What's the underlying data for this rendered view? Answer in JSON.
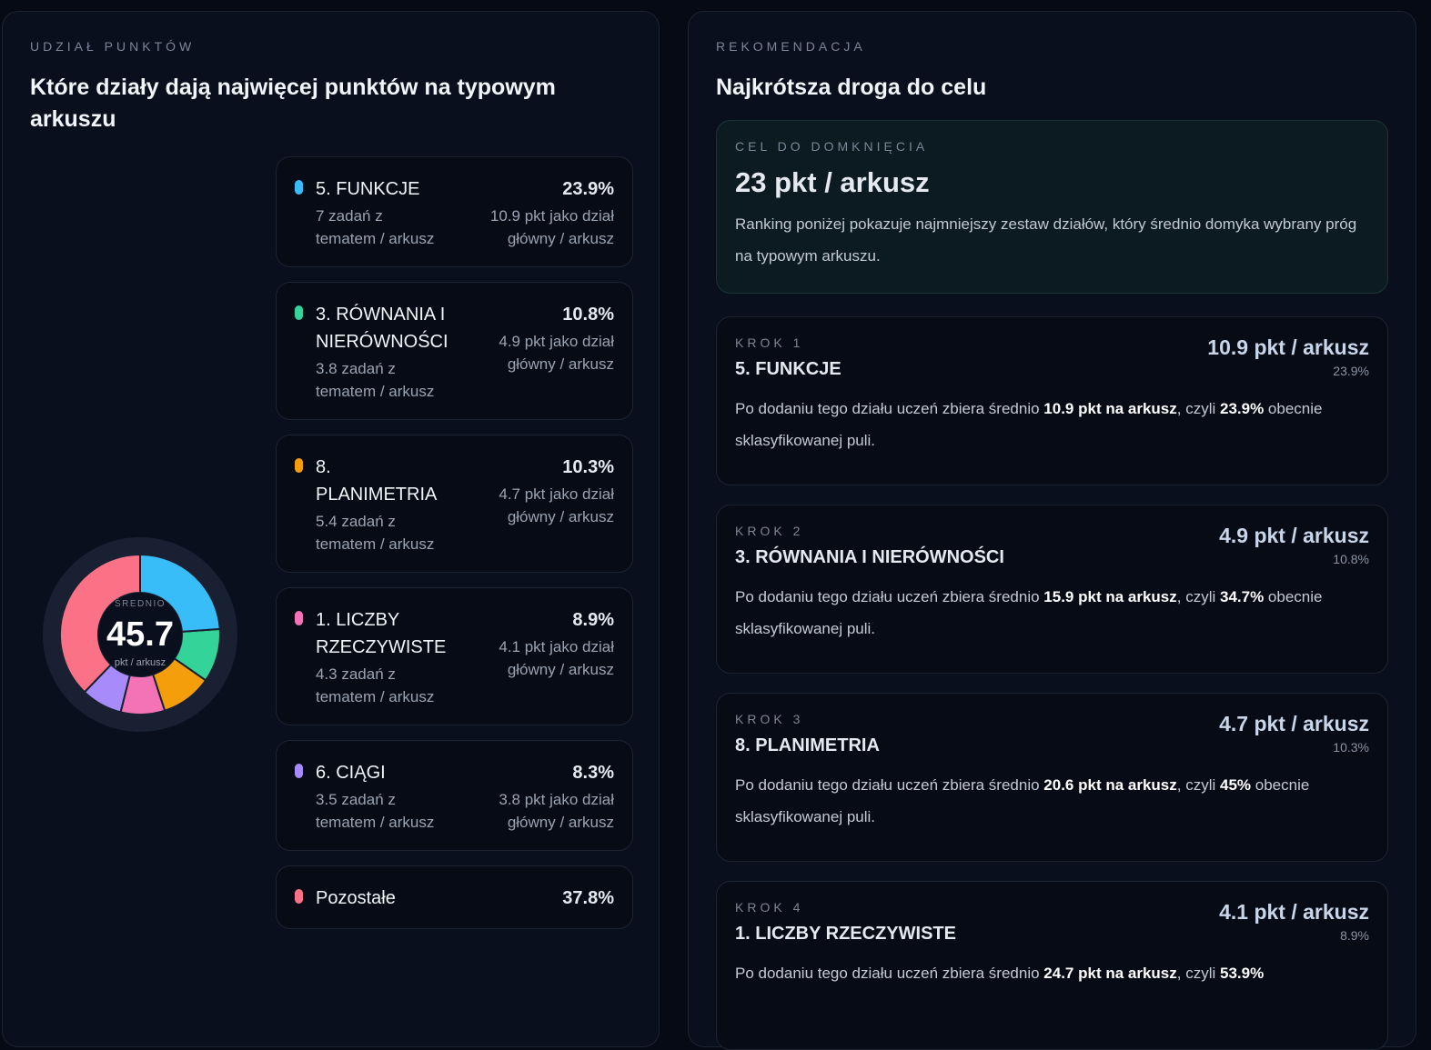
{
  "left": {
    "eyebrow": "UDZIAŁ PUNKTÓW",
    "title": "Które działy dają najwięcej punktów na typowym arkuszu",
    "center": {
      "label": "ŚREDNIO",
      "value": "45.7",
      "unit": "pkt / arkusz"
    },
    "items": [
      {
        "name": "5. FUNKCJE",
        "value": 23.9,
        "value_label": "23.9%",
        "tasks": "7 zadań z tematem / arkusz",
        "points": "10.9 pkt jako dział główny / arkusz",
        "color": "#38bdf8"
      },
      {
        "name": "3. RÓWNANIA I NIERÓWNOŚCI",
        "value": 10.8,
        "value_label": "10.8%",
        "tasks": "3.8 zadań z tematem / arkusz",
        "points": "4.9 pkt jako dział główny / arkusz",
        "color": "#34d399"
      },
      {
        "name": "8. PLANIMETRIA",
        "value": 10.3,
        "value_label": "10.3%",
        "tasks": "5.4 zadań z tematem / arkusz",
        "points": "4.7 pkt jako dział główny / arkusz",
        "color": "#f59e0b"
      },
      {
        "name": "1. LICZBY RZECZYWISTE",
        "value": 8.9,
        "value_label": "8.9%",
        "tasks": "4.3 zadań z tematem / arkusz",
        "points": "4.1 pkt jako dział główny / arkusz",
        "color": "#f472b6"
      },
      {
        "name": "6. CIĄGI",
        "value": 8.3,
        "value_label": "8.3%",
        "tasks": "3.5 zadań z tematem / arkusz",
        "points": "3.8 pkt jako dział główny / arkusz",
        "color": "#a78bfa"
      },
      {
        "name": "Pozostałe",
        "value": 37.8,
        "value_label": "37.8%",
        "color": "#fb7185"
      }
    ]
  },
  "right": {
    "eyebrow": "REKOMENDACJA",
    "title": "Najkrótsza droga do celu",
    "goal": {
      "eyebrow": "CEL DO DOMKNIĘCIA",
      "title": "23 pkt / arkusz",
      "text": "Ranking poniżej pokazuje najmniejszy zestaw działów, który średnio domyka wybrany próg na typowym arkuszu."
    },
    "steps": [
      {
        "label": "KROK 1",
        "name": "5. FUNKCJE",
        "points": "10.9 pkt / arkusz",
        "share": "23.9%",
        "text": [
          {
            "t": "Po dodaniu tego działu uczeń zbiera średnio ",
            "b": false
          },
          {
            "t": "10.9 pkt na arkusz",
            "b": true
          },
          {
            "t": ", czyli ",
            "b": false
          },
          {
            "t": "23.9%",
            "b": true
          },
          {
            "t": " obecnie sklasyfikowanej puli.",
            "b": false
          }
        ]
      },
      {
        "label": "KROK 2",
        "name": "3. RÓWNANIA I NIERÓWNOŚCI",
        "points": "4.9 pkt / arkusz",
        "share": "10.8%",
        "text": [
          {
            "t": "Po dodaniu tego działu uczeń zbiera średnio ",
            "b": false
          },
          {
            "t": "15.9 pkt na arkusz",
            "b": true
          },
          {
            "t": ", czyli ",
            "b": false
          },
          {
            "t": "34.7%",
            "b": true
          },
          {
            "t": " obecnie sklasyfikowanej puli.",
            "b": false
          }
        ]
      },
      {
        "label": "KROK 3",
        "name": "8. PLANIMETRIA",
        "points": "4.7 pkt / arkusz",
        "share": "10.3%",
        "text": [
          {
            "t": "Po dodaniu tego działu uczeń zbiera średnio ",
            "b": false
          },
          {
            "t": "20.6 pkt na arkusz",
            "b": true
          },
          {
            "t": ", czyli ",
            "b": false
          },
          {
            "t": "45%",
            "b": true
          },
          {
            "t": " obecnie sklasyfikowanej puli.",
            "b": false
          }
        ]
      },
      {
        "label": "KROK 4",
        "name": "1. LICZBY RZECZYWISTE",
        "points": "4.1 pkt / arkusz",
        "share": "8.9%",
        "text": [
          {
            "t": "Po dodaniu tego działu uczeń zbiera średnio ",
            "b": false
          },
          {
            "t": "24.7 pkt na arkusz",
            "b": true
          },
          {
            "t": ", czyli ",
            "b": false
          },
          {
            "t": "53.9%",
            "b": true
          }
        ]
      }
    ]
  }
}
